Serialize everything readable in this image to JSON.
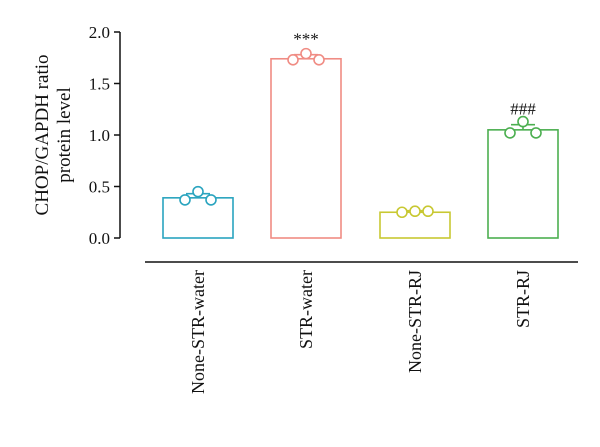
{
  "chart_data": {
    "type": "bar",
    "ylabel_lines": [
      "CHOP/GAPDH ratio",
      "protein level"
    ],
    "ylim": [
      0,
      2.0
    ],
    "yticks": [
      "0.0",
      "0.5",
      "1.0",
      "1.5",
      "2.0"
    ],
    "ytick_values": [
      0,
      0.5,
      1.0,
      1.5,
      2.0
    ],
    "categories": [
      "None-STR-water",
      "STR-water",
      "None-STR-RJ",
      "STR-RJ"
    ],
    "values": [
      0.39,
      1.74,
      0.25,
      1.05
    ],
    "errors": [
      0.04,
      0.04,
      0.015,
      0.05
    ],
    "points": [
      [
        0.37,
        0.45,
        0.37
      ],
      [
        1.73,
        1.79,
        1.73
      ],
      [
        0.25,
        0.26,
        0.26
      ],
      [
        1.02,
        1.13,
        1.02
      ]
    ],
    "significance": [
      "",
      "***",
      "",
      "###"
    ],
    "colors": [
      "#2aa4bf",
      "#f08c84",
      "#c8c832",
      "#4caf50"
    ],
    "grid": false
  }
}
